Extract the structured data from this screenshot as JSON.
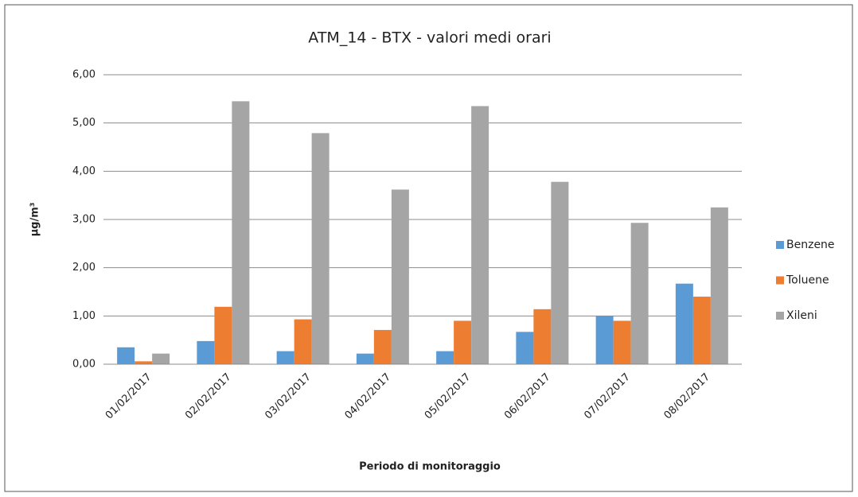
{
  "chart_data": {
    "type": "bar",
    "title": "ATM_14 - BTX - valori medi orari",
    "x_label": "Periodo di monitoraggio",
    "y_label": "µg/m³",
    "categories": [
      "01/02/2017",
      "02/02/2017",
      "03/02/2017",
      "04/02/2017",
      "05/02/2017",
      "06/02/2017",
      "07/02/2017",
      "08/02/2017"
    ],
    "series": [
      {
        "name": "Benzene",
        "color": "#5b9bd5",
        "values": [
          0.35,
          0.48,
          0.27,
          0.22,
          0.27,
          0.67,
          1.0,
          1.67
        ]
      },
      {
        "name": "Toluene",
        "color": "#ed7d31",
        "values": [
          0.06,
          1.19,
          0.93,
          0.71,
          0.9,
          1.14,
          0.9,
          1.4
        ]
      },
      {
        "name": "Xileni",
        "color": "#a5a5a5",
        "values": [
          0.22,
          5.45,
          4.79,
          3.62,
          5.35,
          3.78,
          2.93,
          3.25
        ]
      }
    ],
    "ylim": [
      0,
      6
    ],
    "yticks": [
      {
        "value": 0,
        "label": "0,00"
      },
      {
        "value": 1,
        "label": "1,00"
      },
      {
        "value": 2,
        "label": "2,00"
      },
      {
        "value": 3,
        "label": "3,00"
      },
      {
        "value": 4,
        "label": "4,00"
      },
      {
        "value": 5,
        "label": "5,00"
      },
      {
        "value": 6,
        "label": "6,00"
      }
    ],
    "grid": true,
    "legend": "right"
  }
}
